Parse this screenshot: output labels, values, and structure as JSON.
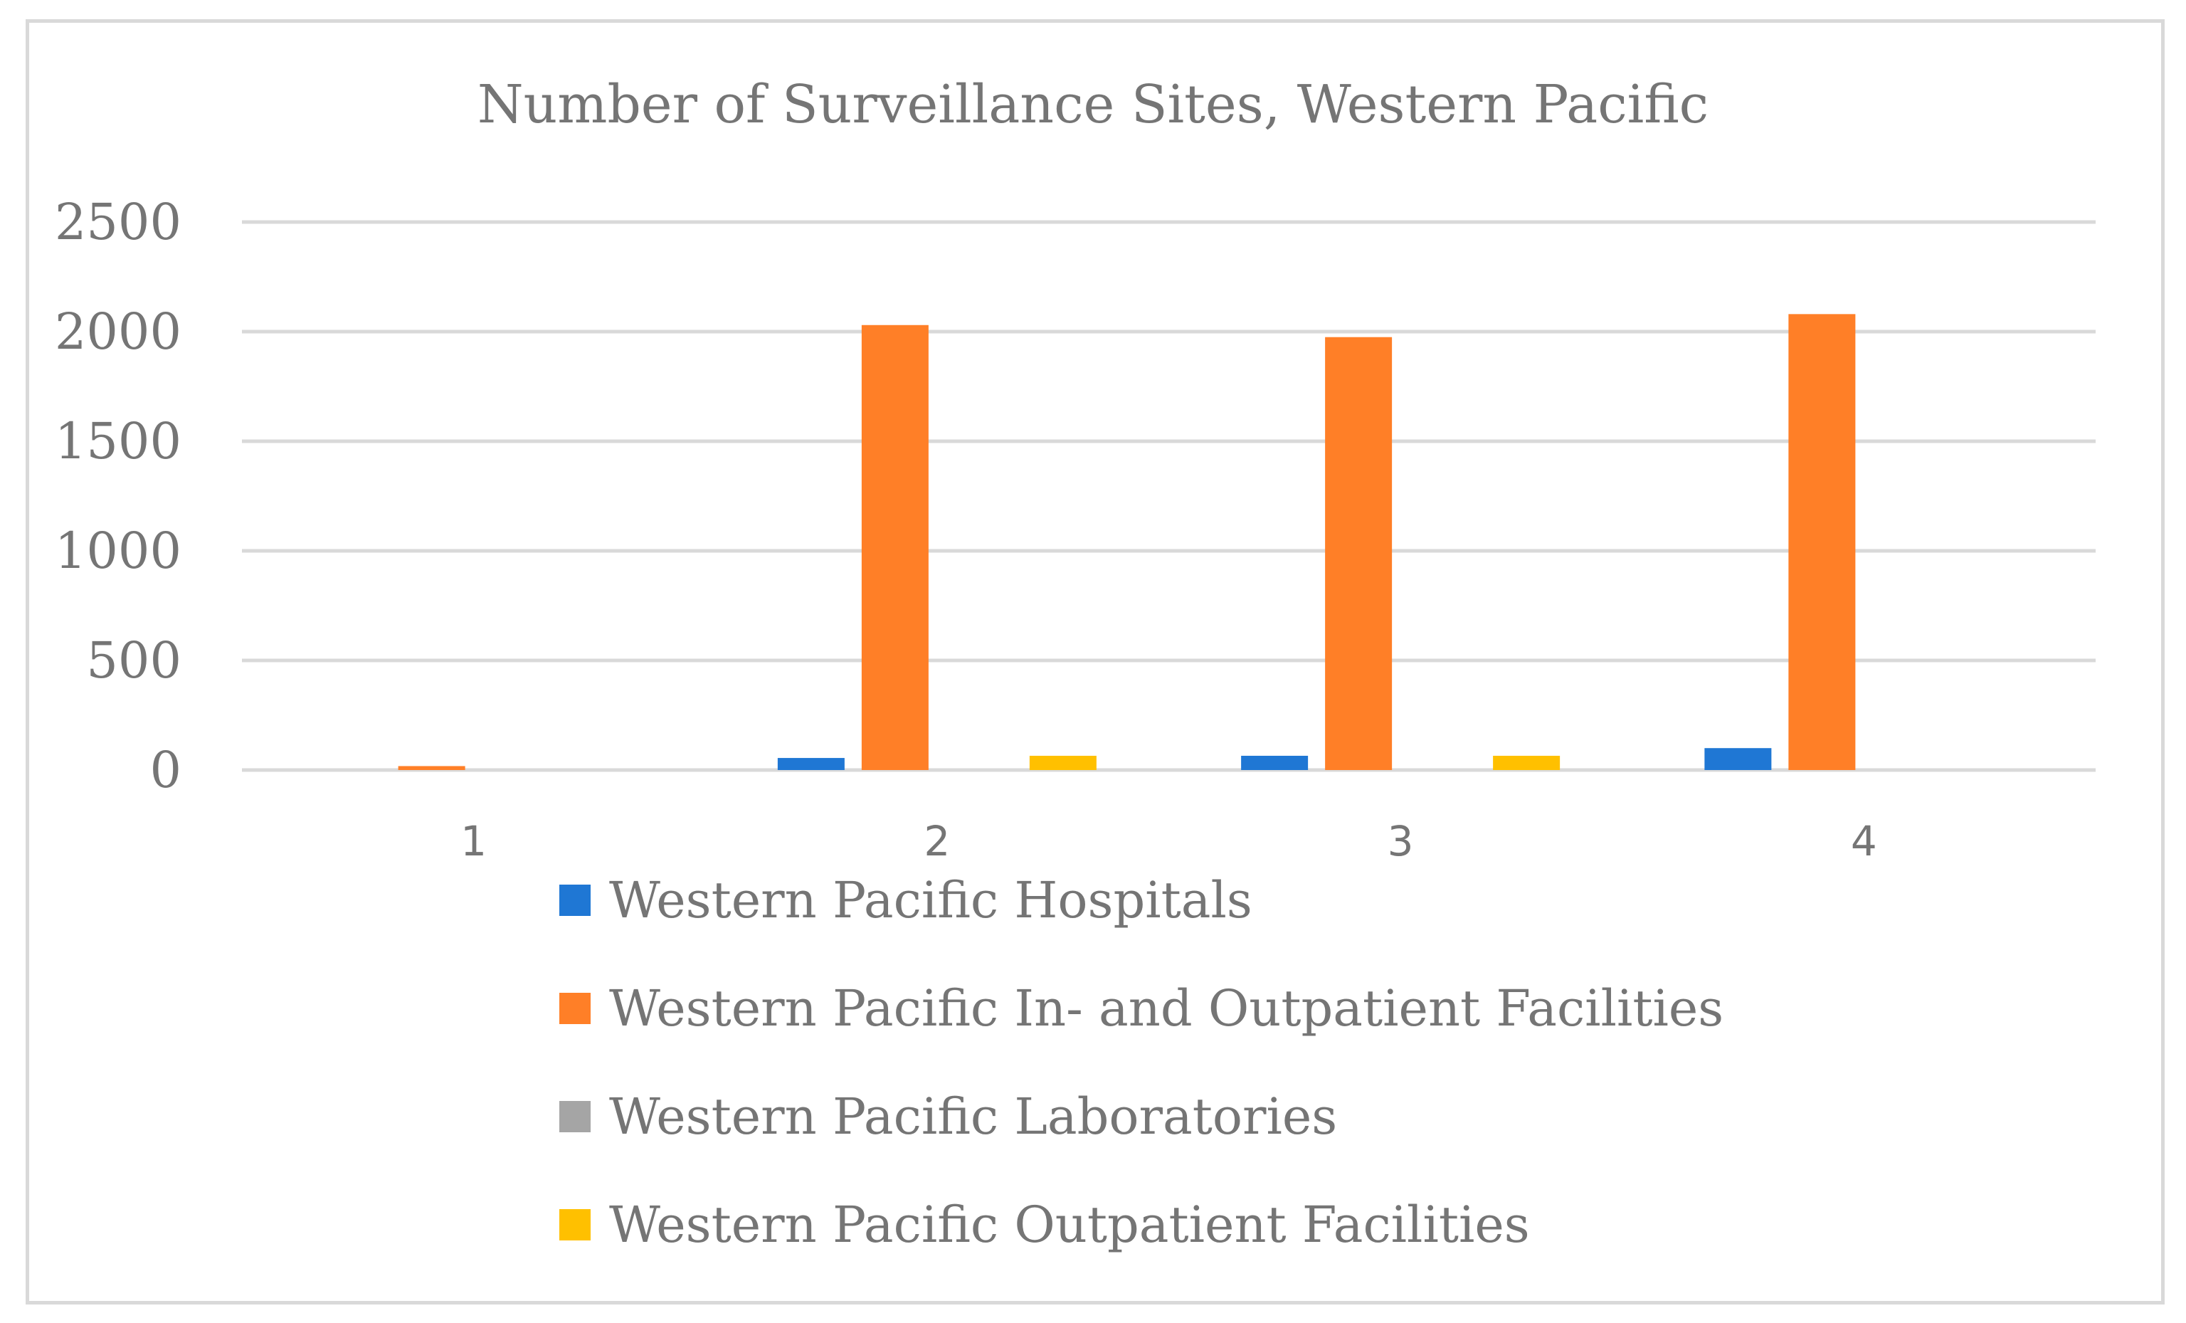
{
  "chart_data": {
    "type": "bar",
    "title": "Number of Surveillance Sites, Western Pacific",
    "xlabel": "",
    "ylabel": "",
    "categories": [
      "1",
      "2",
      "3",
      "4"
    ],
    "ylim": [
      0,
      2500
    ],
    "yticks": [
      "0",
      "500",
      "1000",
      "1500",
      "2000",
      "2500"
    ],
    "grid": true,
    "legend_position": "bottom",
    "series": [
      {
        "name": "Western Pacific Hospitals",
        "color": "#1f77d4",
        "values": [
          0,
          55,
          65,
          100
        ]
      },
      {
        "name": "Western Pacific In- and Outpatient Facilities",
        "color": "#ff7f27",
        "values": [
          18,
          2030,
          1975,
          2080
        ]
      },
      {
        "name": "Western Pacific Laboratories",
        "color": "#a5a5a5",
        "values": [
          0,
          0,
          0,
          0
        ]
      },
      {
        "name": "Western Pacific Outpatient Facilities",
        "color": "#ffc000",
        "values": [
          0,
          65,
          65,
          0
        ]
      }
    ]
  }
}
